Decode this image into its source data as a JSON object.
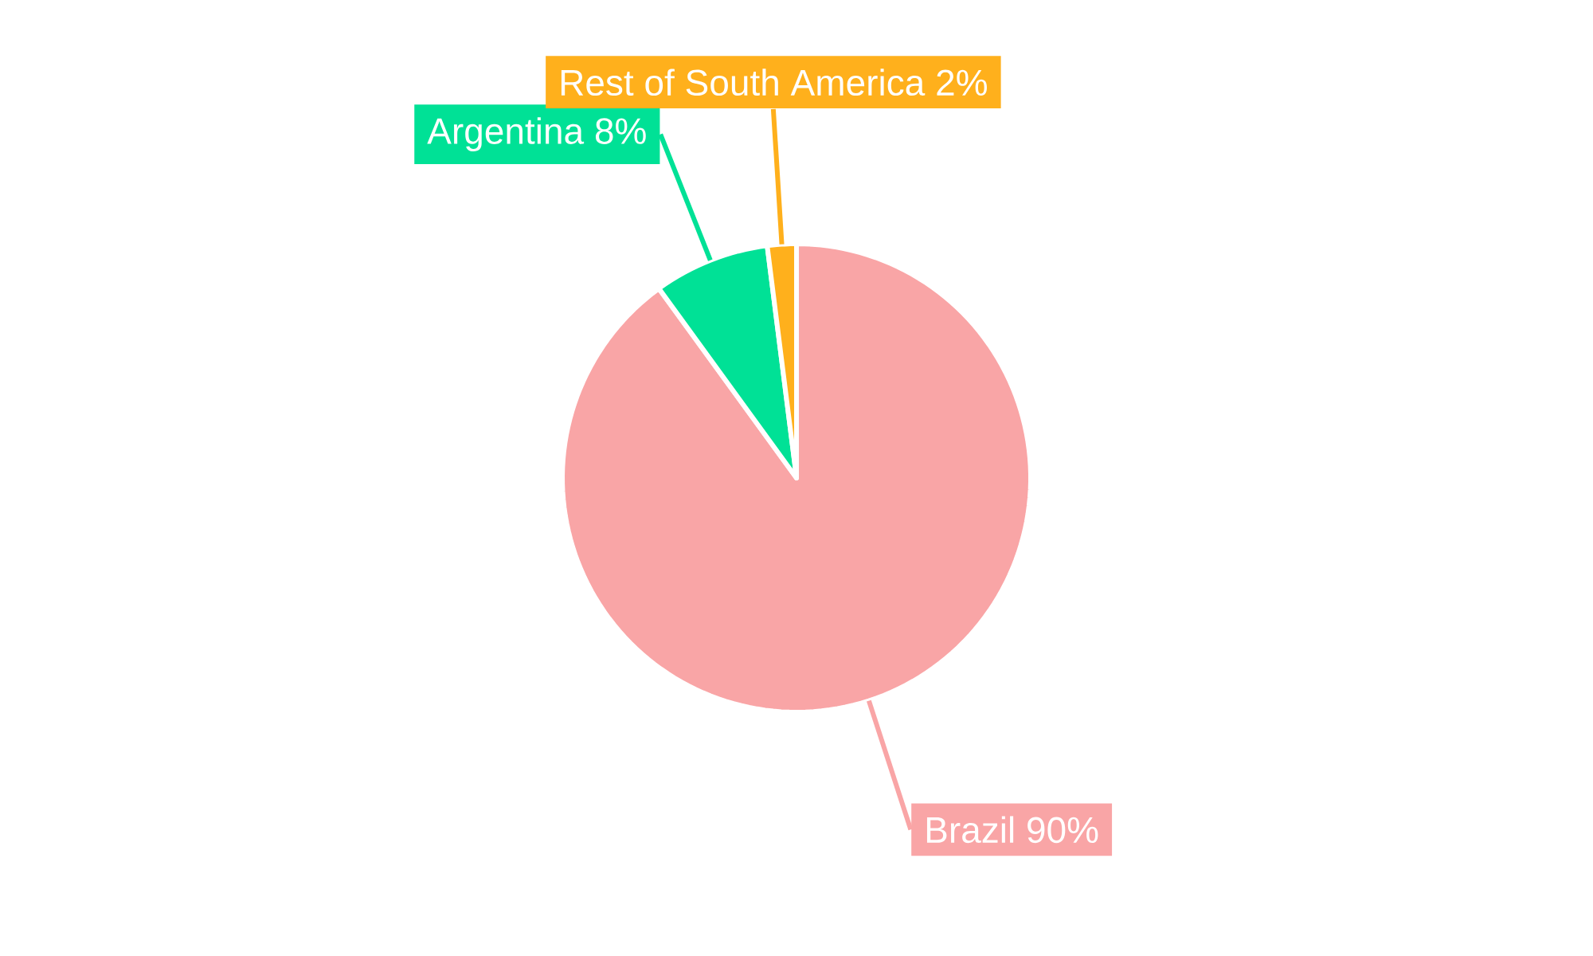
{
  "chart_data": {
    "type": "pie",
    "categories": [
      "Brazil",
      "Argentina",
      "Rest of South America"
    ],
    "values": [
      90,
      8,
      2
    ],
    "value_labels": [
      "90%",
      "8%",
      "2%"
    ],
    "colors": [
      "#f9a5a6",
      "#00e196",
      "#ffb01c"
    ]
  }
}
